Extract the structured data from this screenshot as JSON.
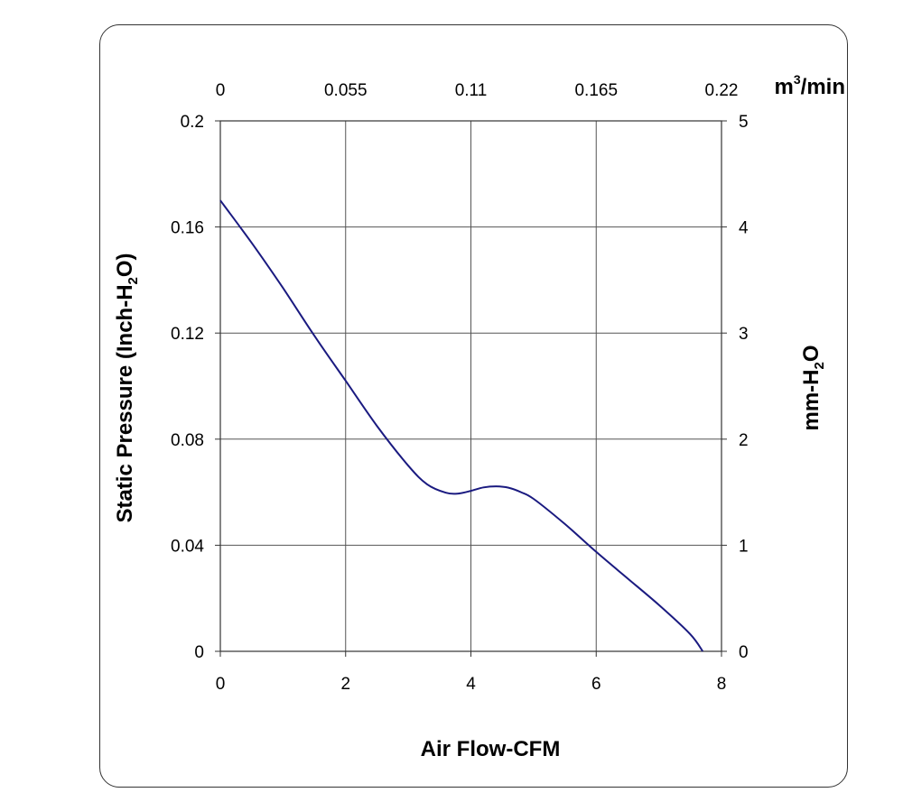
{
  "chart_data": {
    "type": "line",
    "title": "",
    "xlabel": "Air Flow-CFM",
    "x2label": {
      "pre": "m",
      "sup": "3",
      "post": "/min"
    },
    "ylabel": {
      "pre": "Static Pressure (Inch-H",
      "sub": "2",
      "post": "O)"
    },
    "y2label": {
      "pre": "mm-H",
      "sub": "2",
      "post": "O"
    },
    "xlim": [
      0,
      8
    ],
    "ylim": [
      0,
      0.2
    ],
    "x2lim": [
      0,
      0.22
    ],
    "y2lim": [
      0,
      5
    ],
    "x_ticks": [
      "0",
      "2",
      "4",
      "6",
      "8"
    ],
    "x_tick_values": [
      0,
      2,
      4,
      6,
      8
    ],
    "y_ticks": [
      "0",
      "0.04",
      "0.08",
      "0.12",
      "0.16",
      "0.2"
    ],
    "y_tick_values": [
      0,
      0.04,
      0.08,
      0.12,
      0.16,
      0.2
    ],
    "x2_ticks": [
      "0",
      "0.055",
      "0.11",
      "0.165",
      "0.22"
    ],
    "x2_tick_values": [
      0,
      0.055,
      0.11,
      0.165,
      0.22
    ],
    "y2_ticks": [
      "0",
      "1",
      "2",
      "3",
      "4",
      "5"
    ],
    "y2_tick_values": [
      0,
      1,
      2,
      3,
      4,
      5
    ],
    "grid": true,
    "line_color": "#1a1a80",
    "series": [
      {
        "x": [
          0,
          0.5,
          1.0,
          1.5,
          2.0,
          2.5,
          3.0,
          3.3,
          3.6,
          3.8,
          4.0,
          4.2,
          4.4,
          4.6,
          4.8,
          5.0,
          5.5,
          6.0,
          6.5,
          7.0,
          7.5,
          7.7
        ],
        "y": [
          0.17,
          0.154,
          0.137,
          0.119,
          0.102,
          0.085,
          0.07,
          0.063,
          0.0598,
          0.0595,
          0.0605,
          0.0618,
          0.0622,
          0.0617,
          0.06,
          0.0575,
          0.048,
          0.0375,
          0.0275,
          0.0175,
          0.0065,
          0.0
        ]
      }
    ]
  }
}
